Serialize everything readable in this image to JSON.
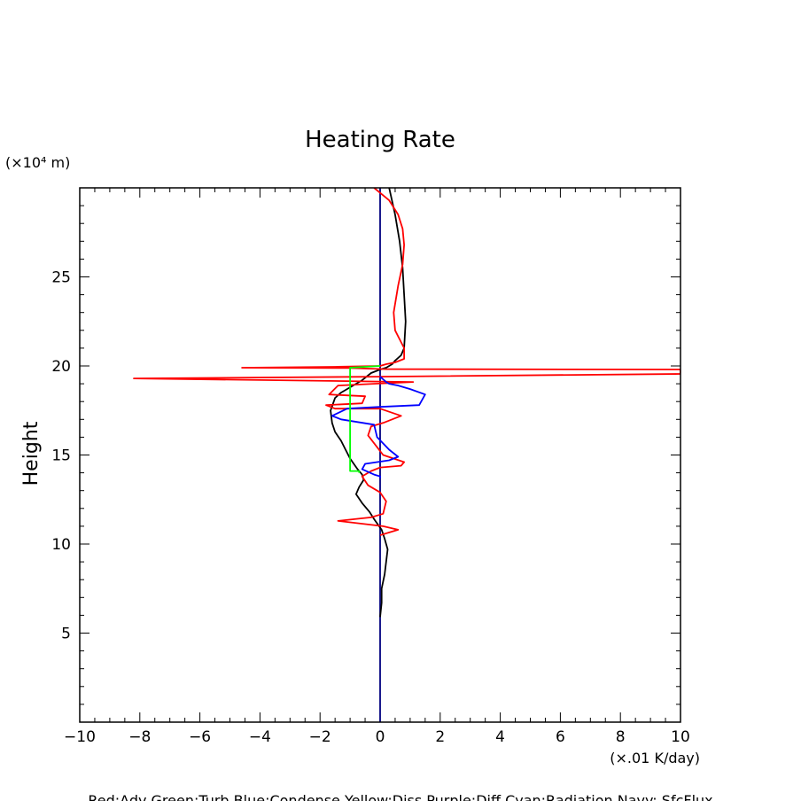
{
  "chart_data": {
    "type": "line",
    "title": "Heating Rate",
    "ylabel": "Height",
    "y_unit": "(×10⁴ m)",
    "x_unit": "(×.01 K/day)",
    "xlim": [
      -10,
      10
    ],
    "ylim": [
      0,
      30
    ],
    "x_ticks": [
      "−10",
      "−8",
      "−6",
      "−4",
      "−2",
      "0",
      "2",
      "4",
      "6",
      "8",
      "10"
    ],
    "x_tick_values": [
      -10,
      -8,
      -6,
      -4,
      -2,
      0,
      2,
      4,
      6,
      8,
      10
    ],
    "y_ticks": [
      "5",
      "10",
      "15",
      "20",
      "25"
    ],
    "y_tick_values": [
      5,
      10,
      15,
      20,
      25
    ],
    "footer": "Red:Adv  Green:Turb  Blue:Condense  Yellow:Diss  Purple:Diff  Cyan:Radiation  Navy: SfcFlux",
    "grid": false,
    "series": [
      {
        "color": "#000080",
        "x": [
          0,
          0
        ],
        "y": [
          0,
          30
        ]
      },
      {
        "color": "#000000",
        "x": [
          0.3,
          0.5,
          0.65,
          0.75,
          0.8,
          0.85,
          0.8,
          0.7,
          0.5,
          0.4,
          0.2,
          0.0,
          -0.3,
          -0.6,
          -1.0,
          -1.3,
          -1.5,
          -1.65,
          -1.6,
          -1.5,
          -1.3,
          -1.15,
          -1.0,
          -0.75,
          -0.6,
          -0.55,
          -0.7,
          -0.8,
          -0.6,
          -0.35,
          -0.2,
          0.05,
          0.15,
          0.25,
          0.2,
          0.15,
          0.05,
          0.05,
          0.0
        ],
        "y": [
          30,
          28.5,
          27,
          25.5,
          24,
          22.5,
          21,
          20.6,
          20.3,
          20.1,
          19.9,
          19.8,
          19.6,
          19.2,
          18.8,
          18.5,
          18.2,
          17.5,
          16.8,
          16.3,
          15.8,
          15.3,
          14.8,
          14.2,
          13.9,
          13.6,
          13.2,
          12.8,
          12.3,
          11.8,
          11.4,
          10.8,
          10.3,
          9.7,
          9.0,
          8.3,
          7.5,
          6.7,
          5.9
        ]
      },
      {
        "color": "#ff0000",
        "x": [
          -0.2,
          0.3,
          0.6,
          0.75,
          0.8,
          0.75,
          0.6,
          0.45,
          0.5,
          0.65,
          0.8,
          0.8,
          0.5,
          0.2,
          0.0,
          -1.5,
          -4.6,
          -1.0,
          0.2,
          10.0,
          10.0,
          0.0,
          -8.2,
          1.1,
          -0.2,
          -1.4,
          -1.7,
          -0.5,
          -0.6,
          -1.8,
          -1.5,
          0.0,
          0.7,
          0.1,
          -0.3,
          -0.4,
          0.1,
          0.8,
          0.7,
          0.0,
          -0.3,
          -0.6,
          -0.4,
          0.0,
          0.2,
          0.1,
          -0.3,
          -1.4,
          0.1,
          0.6,
          0.0
        ],
        "y": [
          30,
          29.3,
          28.5,
          27.7,
          26.8,
          25.7,
          24.5,
          23.0,
          22.0,
          21.5,
          21.0,
          20.4,
          20.2,
          20.1,
          20.0,
          19.95,
          19.9,
          19.88,
          19.82,
          19.8,
          19.55,
          19.4,
          19.3,
          19.1,
          19.0,
          18.9,
          18.4,
          18.3,
          17.9,
          17.8,
          17.6,
          17.6,
          17.2,
          16.8,
          16.6,
          16.1,
          15.0,
          14.6,
          14.4,
          14.3,
          14.1,
          13.8,
          13.3,
          12.9,
          12.4,
          11.7,
          11.5,
          11.3,
          11.0,
          10.8,
          10.5
        ]
      },
      {
        "color": "#0000ff",
        "x": [
          0.0,
          0.2,
          0.3,
          0.6,
          1.0,
          1.5,
          1.3,
          0.0,
          -1.1,
          -1.6,
          -1.3,
          -0.2,
          -0.1,
          0.3,
          0.6,
          0.3,
          -0.5,
          -0.6,
          -0.2,
          0.0,
          0.0
        ],
        "y": [
          19.4,
          19.1,
          19.0,
          18.9,
          18.7,
          18.4,
          17.8,
          17.7,
          17.6,
          17.2,
          17.0,
          16.7,
          16.0,
          15.3,
          14.9,
          14.7,
          14.5,
          14.2,
          13.9,
          13.8,
          13.7
        ]
      },
      {
        "color": "#00ff00",
        "x": [
          0.0,
          -1.0,
          -1.0,
          -1.0,
          -0.7,
          -0.7
        ],
        "y": [
          20.0,
          19.9,
          18.0,
          14.1,
          14.1,
          14.0
        ]
      }
    ]
  }
}
